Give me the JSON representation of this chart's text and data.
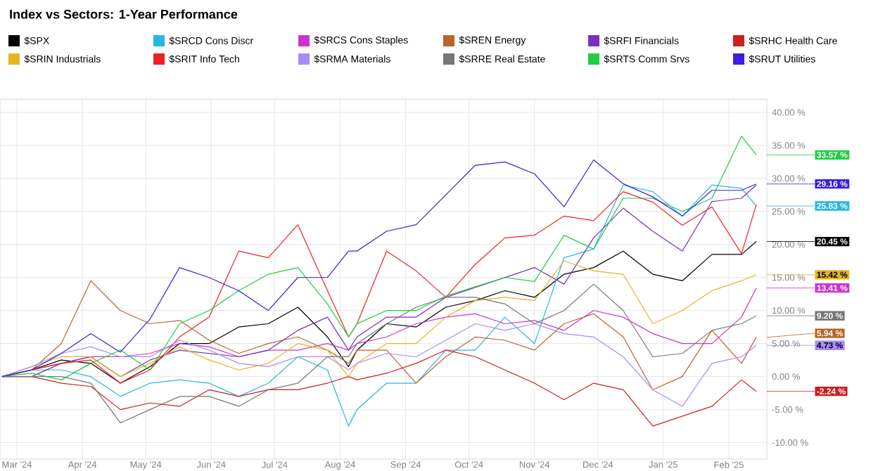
{
  "chart_data": {
    "type": "line",
    "title": "Index vs Sectors: 1-Year Performance",
    "x": [
      "2024-02-23",
      "2024-03-08",
      "2024-03-22",
      "2024-04-05",
      "2024-04-19",
      "2024-05-03",
      "2024-05-17",
      "2024-05-31",
      "2024-06-14",
      "2024-06-28",
      "2024-07-12",
      "2024-07-26",
      "2024-08-05",
      "2024-08-09",
      "2024-08-23",
      "2024-09-06",
      "2024-09-20",
      "2024-10-04",
      "2024-10-18",
      "2024-11-01",
      "2024-11-15",
      "2024-11-29",
      "2024-12-13",
      "2024-12-27",
      "2025-01-10",
      "2025-01-24",
      "2025-02-07",
      "2025-02-14"
    ],
    "xlim": [
      "2024-02-22",
      "2025-02-19"
    ],
    "xticks": [
      {
        "value": "2024-03-01",
        "label": "Mar '24"
      },
      {
        "value": "2024-04-01",
        "label": "Apr '24"
      },
      {
        "value": "2024-05-01",
        "label": "May '24"
      },
      {
        "value": "2024-06-01",
        "label": "Jun '24"
      },
      {
        "value": "2024-07-01",
        "label": "Jul '24"
      },
      {
        "value": "2024-08-01",
        "label": "Aug '24"
      },
      {
        "value": "2024-09-01",
        "label": "Sep '24"
      },
      {
        "value": "2024-10-01",
        "label": "Oct '24"
      },
      {
        "value": "2024-11-01",
        "label": "Nov '24"
      },
      {
        "value": "2024-12-01",
        "label": "Dec '24"
      },
      {
        "value": "2025-01-01",
        "label": "Jan '25"
      },
      {
        "value": "2025-02-01",
        "label": "Feb '25"
      }
    ],
    "ylim": [
      -12.5,
      42
    ],
    "yticks": [
      {
        "value": -10,
        "label": "-10.00 %"
      },
      {
        "value": -5,
        "label": "-5.00 %"
      },
      {
        "value": 0,
        "label": "0.00 %"
      },
      {
        "value": 5,
        "label": "5.00 %"
      },
      {
        "value": 10,
        "label": "10.00 %"
      },
      {
        "value": 15,
        "label": "15.00 %"
      },
      {
        "value": 20,
        "label": "20.00 %"
      },
      {
        "value": 25,
        "label": "25.00 %"
      },
      {
        "value": 30,
        "label": "30.00 %"
      },
      {
        "value": 35,
        "label": "35.00 %"
      },
      {
        "value": 40,
        "label": "40.00 %"
      }
    ],
    "grid": true,
    "legend": "top",
    "marker": "none",
    "line_style": "solid",
    "series": [
      {
        "name": "$SPX",
        "color": "#000000",
        "values": [
          0,
          1,
          2.5,
          2,
          -1,
          1.5,
          5,
          5,
          7.5,
          8,
          10.5,
          6,
          1.5,
          4,
          8,
          7.5,
          10.5,
          11.5,
          13,
          12,
          15.5,
          16.5,
          19,
          15.5,
          14.5,
          18.5,
          18.5,
          20.45
        ],
        "value_labels": [
          null,
          null,
          null,
          null,
          null,
          null,
          null,
          null,
          null,
          null,
          null,
          null,
          null,
          null,
          null,
          null,
          null,
          null,
          null,
          null,
          null,
          null,
          null,
          null,
          null,
          null,
          null,
          "20.45 %"
        ]
      },
      {
        "name": "$SRCD Cons Discr",
        "color": "#29b6e6",
        "values": [
          0,
          1,
          1,
          0,
          -3,
          -1,
          -0.5,
          -1,
          -3,
          -1,
          3,
          1,
          -7.5,
          -5,
          -1,
          -1,
          4,
          4,
          9,
          5,
          18,
          19.3,
          29,
          28,
          24.3,
          29,
          28.5,
          25.83
        ],
        "value_labels": [
          null,
          null,
          null,
          null,
          null,
          null,
          null,
          null,
          null,
          null,
          null,
          null,
          null,
          null,
          null,
          null,
          null,
          null,
          null,
          null,
          null,
          null,
          null,
          null,
          null,
          null,
          null,
          "25.83 %"
        ]
      },
      {
        "name": "$SRCS Cons Staples",
        "color": "#cc33cc",
        "values": [
          0,
          1,
          2,
          3,
          3,
          3.5,
          5,
          4.5,
          3,
          4,
          4,
          5,
          4,
          5,
          6,
          8,
          9,
          9.5,
          8,
          8.5,
          7,
          10,
          9,
          6.5,
          5,
          5,
          9,
          13.41
        ],
        "value_labels": [
          null,
          null,
          null,
          null,
          null,
          null,
          null,
          null,
          null,
          null,
          null,
          null,
          null,
          null,
          null,
          null,
          null,
          null,
          null,
          null,
          null,
          null,
          null,
          null,
          null,
          null,
          null,
          "13.41 %"
        ]
      },
      {
        "name": "$SREN Energy",
        "color": "#b8652a",
        "values": [
          0,
          1,
          5,
          14.5,
          10,
          8,
          8.5,
          5.5,
          3.5,
          5,
          6,
          4,
          2,
          4,
          4,
          -1,
          3,
          6,
          5.5,
          4,
          8,
          9.5,
          6,
          -2,
          0,
          7,
          2,
          5.94
        ],
        "value_labels": [
          null,
          null,
          null,
          null,
          null,
          null,
          null,
          null,
          null,
          null,
          null,
          null,
          null,
          null,
          null,
          null,
          null,
          null,
          null,
          null,
          null,
          null,
          null,
          null,
          null,
          null,
          null,
          "5.94 %"
        ]
      },
      {
        "name": "$SRFI Financials",
        "color": "#7a2fbf",
        "values": [
          0,
          0,
          2,
          3,
          0,
          2.5,
          4,
          3.5,
          3,
          4,
          7,
          9,
          4,
          6,
          9,
          9,
          12,
          13.5,
          15,
          16.5,
          14,
          21,
          25.5,
          22,
          19,
          26.5,
          27,
          29
        ]
      },
      {
        "name": "$SRHC Health Care",
        "color": "#cc1f1f",
        "values": [
          0,
          0,
          -1,
          -1.5,
          -5,
          -4,
          -4.5,
          -2,
          -3,
          -2,
          -2,
          -1,
          0,
          -0.5,
          0.5,
          2,
          4,
          3,
          1,
          -1,
          -3.5,
          -1,
          -2,
          -7.5,
          -6,
          -4.5,
          -0.5,
          -2.24
        ],
        "value_labels": [
          null,
          null,
          null,
          null,
          null,
          null,
          null,
          null,
          null,
          null,
          null,
          null,
          null,
          null,
          null,
          null,
          null,
          null,
          null,
          null,
          null,
          null,
          null,
          null,
          null,
          null,
          null,
          "-2.24 %"
        ]
      },
      {
        "name": "$SRIN Industrials",
        "color": "#e6b422",
        "values": [
          0,
          1.5,
          3,
          3,
          0,
          2,
          4.5,
          2.5,
          1,
          2,
          5,
          4,
          0,
          2,
          5,
          5,
          9,
          11.5,
          12,
          11.5,
          17.5,
          16,
          15.5,
          8,
          10,
          13,
          14.5,
          15.42
        ],
        "value_labels": [
          null,
          null,
          null,
          null,
          null,
          null,
          null,
          null,
          null,
          null,
          null,
          null,
          null,
          null,
          null,
          null,
          null,
          null,
          null,
          null,
          null,
          null,
          null,
          null,
          null,
          null,
          null,
          "15.42 %"
        ]
      },
      {
        "name": "$SRIT Info Tech",
        "color": "#ee2222",
        "values": [
          0,
          1,
          2,
          2.5,
          -1,
          1,
          6,
          9,
          19,
          18,
          23,
          13,
          6,
          8,
          19,
          16,
          12,
          17,
          21,
          21.4,
          24.3,
          23.6,
          28,
          26.4,
          22.9,
          25.7,
          18.6,
          26
        ]
      },
      {
        "name": "$SRMA Materials",
        "color": "#a78bfa",
        "values": [
          0,
          1.5,
          3.5,
          4.5,
          3,
          3,
          5.5,
          4,
          2,
          1.5,
          3,
          3,
          1,
          2,
          3.5,
          3,
          5.5,
          8,
          7,
          8,
          6.5,
          6,
          3,
          -2,
          -4.5,
          2,
          3,
          4.73
        ],
        "value_labels": [
          null,
          null,
          null,
          null,
          null,
          null,
          null,
          null,
          null,
          null,
          null,
          null,
          null,
          null,
          null,
          null,
          null,
          null,
          null,
          null,
          null,
          null,
          null,
          null,
          null,
          null,
          null,
          "4.73 %"
        ]
      },
      {
        "name": "$SRRE Real Estate",
        "color": "#777777",
        "values": [
          0,
          0,
          0,
          -1,
          -7,
          -5,
          -3,
          -3,
          -4.5,
          -2,
          -1,
          3,
          3,
          5,
          8,
          10.5,
          12,
          12,
          11,
          8,
          10,
          14,
          10,
          3,
          3.5,
          7,
          8,
          9.2
        ],
        "value_labels": [
          null,
          null,
          null,
          null,
          null,
          null,
          null,
          null,
          null,
          null,
          null,
          null,
          null,
          null,
          null,
          null,
          null,
          null,
          null,
          null,
          null,
          null,
          null,
          null,
          null,
          null,
          null,
          "9.20 %"
        ]
      },
      {
        "name": "$SRTS Comm Srvs",
        "color": "#22cc44",
        "values": [
          0,
          0.5,
          -0.5,
          2,
          4,
          1,
          8,
          10,
          13,
          15.5,
          16.5,
          11,
          6,
          8,
          10,
          10,
          12.2,
          13.6,
          15,
          14.4,
          21.4,
          19.3,
          27,
          27,
          25,
          27,
          36.4,
          33.57
        ],
        "value_labels": [
          null,
          null,
          null,
          null,
          null,
          null,
          null,
          null,
          null,
          null,
          null,
          null,
          null,
          null,
          null,
          null,
          null,
          null,
          null,
          null,
          null,
          null,
          null,
          null,
          null,
          null,
          null,
          "33.57 %"
        ]
      },
      {
        "name": "$SRUT Utilities",
        "color": "#3a1fe0",
        "values": [
          0,
          1,
          3.5,
          6.5,
          3.7,
          8.7,
          16.5,
          15,
          13,
          10,
          15,
          15,
          19,
          19,
          22,
          23,
          27.5,
          32,
          32.5,
          30.7,
          25.7,
          32.8,
          29.2,
          27.2,
          24.3,
          28.2,
          28.2,
          29.16
        ],
        "value_labels": [
          null,
          null,
          null,
          null,
          null,
          null,
          null,
          null,
          null,
          null,
          null,
          null,
          null,
          null,
          null,
          null,
          null,
          null,
          null,
          null,
          null,
          null,
          null,
          null,
          null,
          null,
          null,
          "29.16 %"
        ]
      }
    ]
  }
}
